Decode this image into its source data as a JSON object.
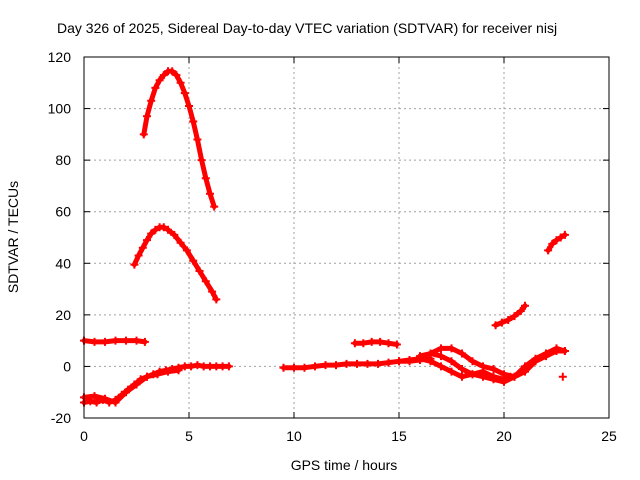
{
  "chart_data": {
    "type": "scatter",
    "title": "Day 326 of 2025, Sidereal Day-to-day VTEC variation (SDTVAR) for receiver nisj",
    "xlabel": "GPS time / hours",
    "ylabel": "SDTVAR / TECUs",
    "xlim": [
      0,
      25
    ],
    "ylim": [
      -20,
      120
    ],
    "xticks": [
      0,
      5,
      10,
      15,
      20,
      25
    ],
    "yticks": [
      -20,
      0,
      20,
      40,
      60,
      80,
      100,
      120
    ],
    "grid": true,
    "legend": "none",
    "color": "#ff0000",
    "series": [
      {
        "x": [
          2.85,
          3.0,
          3.2,
          3.4,
          3.6,
          3.8,
          4.0,
          4.2,
          4.4,
          4.6,
          4.8,
          5.0,
          5.2,
          5.4,
          5.6,
          5.8,
          6.0,
          6.2
        ],
        "y": [
          90,
          97,
          103,
          108,
          111,
          113,
          114.5,
          114.5,
          113,
          110,
          106,
          101,
          95,
          88,
          80,
          73,
          67,
          62
        ]
      },
      {
        "x": [
          2.4,
          2.6,
          2.8,
          3.0,
          3.2,
          3.4,
          3.6,
          3.8,
          4.0,
          4.3,
          4.6,
          4.9,
          5.2,
          5.5,
          5.8,
          6.1,
          6.3
        ],
        "y": [
          39.5,
          43,
          46,
          49,
          51.5,
          53,
          54,
          54,
          53,
          51,
          48,
          45,
          41,
          37,
          33,
          29,
          26
        ]
      },
      {
        "x": [
          0.0,
          0.5,
          1.0,
          1.5,
          2.0,
          2.5,
          2.9
        ],
        "y": [
          10,
          9.5,
          9.5,
          10,
          10,
          10,
          9.5
        ]
      },
      {
        "x": [
          0.0,
          0.3,
          0.6,
          0.9,
          1.2,
          1.5,
          1.8,
          2.1,
          2.4,
          2.7,
          3.0,
          3.3,
          3.6,
          3.9,
          4.2,
          4.5,
          4.8,
          5.1,
          5.4,
          5.7,
          6.0,
          6.3,
          6.6,
          6.9
        ],
        "y": [
          -14,
          -13.5,
          -14,
          -13,
          -14,
          -13,
          -11,
          -9,
          -7,
          -5,
          -4,
          -3,
          -2,
          -1.5,
          -1,
          -0.5,
          0,
          0,
          0.5,
          0,
          0,
          0,
          0,
          0
        ]
      },
      {
        "x": [
          0.0,
          0.5,
          1.0,
          1.5,
          2.0,
          2.5,
          3.0,
          3.5,
          4.0,
          4.5
        ],
        "y": [
          -12,
          -11.5,
          -12.5,
          -14,
          -10,
          -7,
          -4,
          -3,
          -2,
          -1.5
        ]
      },
      {
        "x": [
          9.5,
          10.0,
          10.5,
          11.0,
          11.5,
          12.0,
          12.5,
          13.0,
          13.5,
          14.0,
          14.5,
          15.0,
          15.5,
          16.0,
          16.5
        ],
        "y": [
          -0.5,
          -0.5,
          -0.5,
          0,
          0.5,
          0.5,
          1,
          1,
          1,
          1,
          1.5,
          2,
          2,
          2.5,
          3
        ]
      },
      {
        "x": [
          12.9,
          13.3,
          13.7,
          14.1,
          14.5,
          14.9
        ],
        "y": [
          9,
          9,
          9.5,
          9.5,
          9,
          8.5
        ]
      },
      {
        "x": [
          16.0,
          16.5,
          17.0,
          17.5,
          18.0,
          18.5,
          19.0,
          19.5,
          20.0,
          20.5,
          21.0,
          21.5,
          22.0,
          22.5,
          22.9
        ],
        "y": [
          4,
          5,
          4,
          2,
          -1,
          -3,
          -4,
          -5,
          -6,
          -4,
          0,
          3,
          5,
          7,
          6
        ]
      },
      {
        "x": [
          16.5,
          17.0,
          17.5,
          18.0,
          18.5,
          19.0,
          19.5,
          20.0,
          20.5,
          21.0,
          21.5,
          22.0,
          22.5,
          22.9
        ],
        "y": [
          5,
          7,
          7,
          5,
          2,
          0,
          -1,
          -3,
          -4,
          -2,
          2,
          4,
          6,
          6
        ]
      },
      {
        "x": [
          15.0,
          15.5,
          16.0,
          16.5,
          17.0,
          17.5,
          18.0,
          18.5,
          19.0,
          19.5,
          20.0,
          20.3
        ],
        "y": [
          2,
          2.5,
          3,
          2,
          0,
          -2,
          -4,
          -3,
          -2,
          -4,
          -5,
          -4
        ]
      },
      {
        "x": [
          19.6,
          19.9,
          20.2,
          20.5,
          20.8,
          21.0
        ],
        "y": [
          16,
          17,
          18,
          19.5,
          21.5,
          23.5
        ]
      },
      {
        "x": [
          22.1,
          22.3,
          22.5,
          22.7,
          22.9
        ],
        "y": [
          45,
          47.5,
          49,
          50,
          51
        ]
      },
      {
        "x": [
          22.8
        ],
        "y": [
          -4
        ]
      }
    ]
  }
}
